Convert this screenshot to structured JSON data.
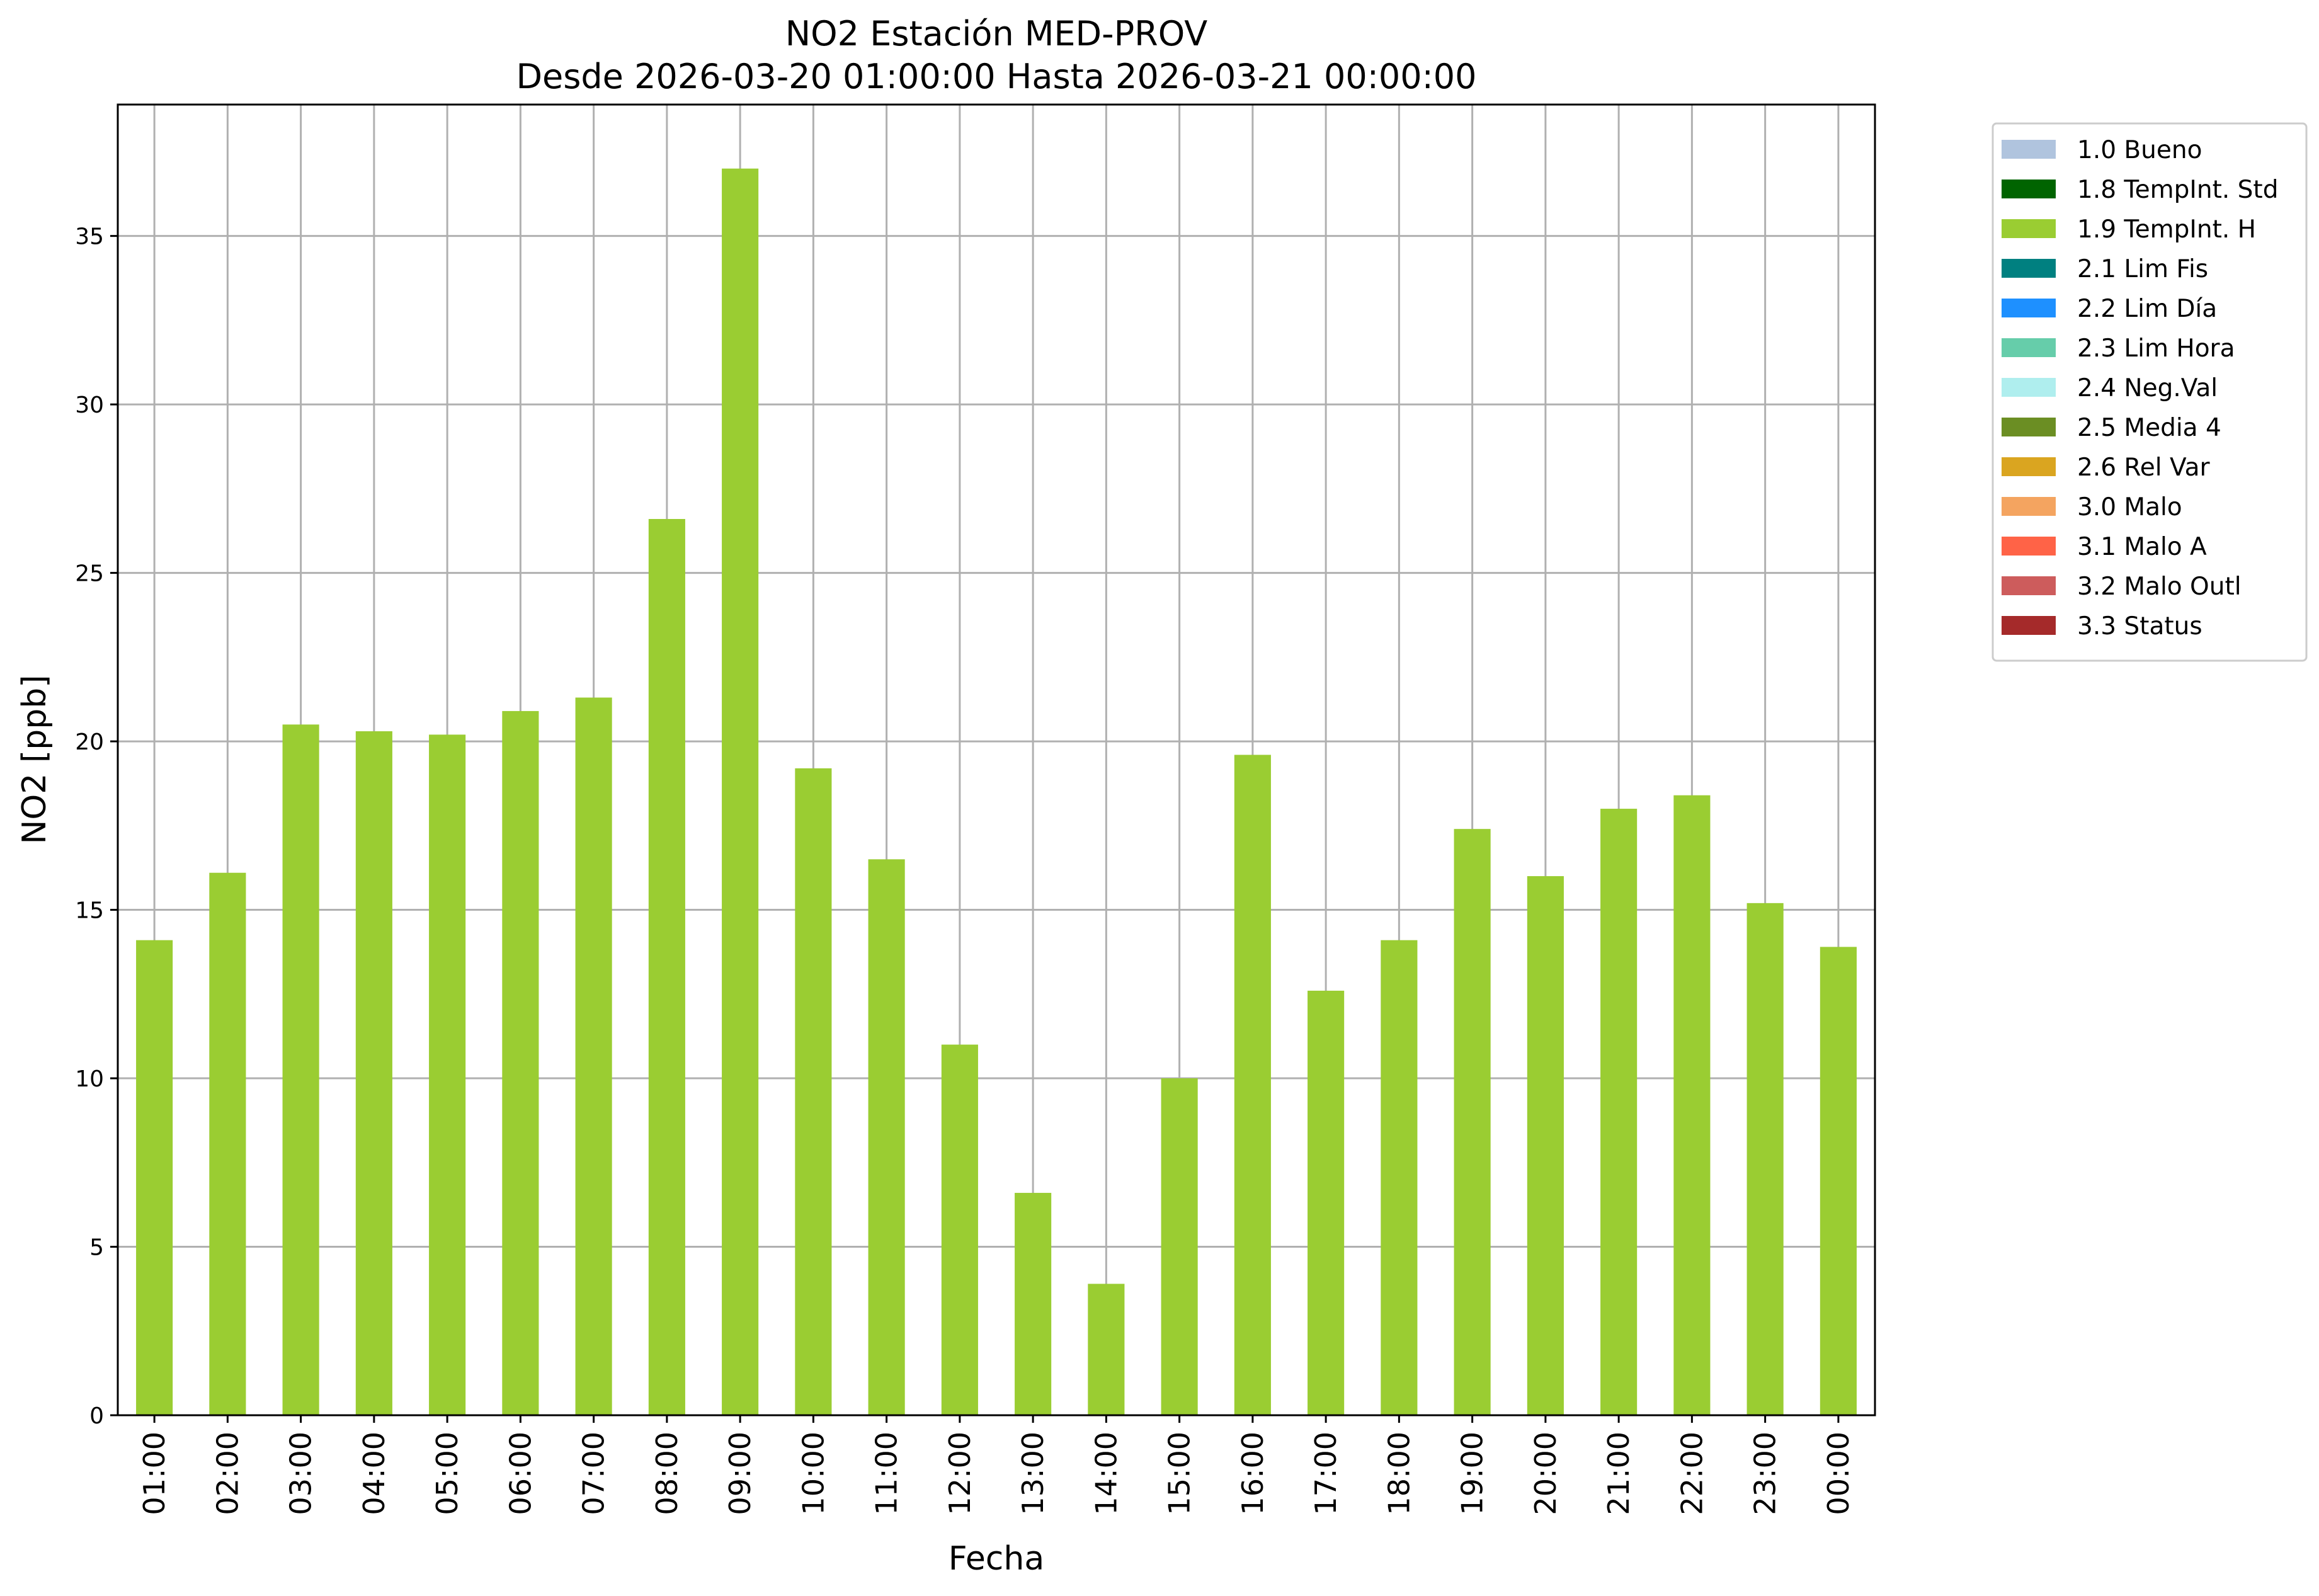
{
  "chart_data": {
    "type": "bar",
    "title": "NO2 Estación MED-PROV",
    "subtitle": "Desde 2026-03-20 01:00:00 Hasta 2026-03-21 00:00:00",
    "xlabel": "Fecha",
    "ylabel": "NO2 [ppb]",
    "categories": [
      "01:00",
      "02:00",
      "03:00",
      "04:00",
      "05:00",
      "06:00",
      "07:00",
      "08:00",
      "09:00",
      "10:00",
      "11:00",
      "12:00",
      "13:00",
      "14:00",
      "15:00",
      "16:00",
      "17:00",
      "18:00",
      "19:00",
      "20:00",
      "21:00",
      "22:00",
      "23:00",
      "00:00"
    ],
    "series": [
      {
        "name": "1.9 TempInt. H",
        "color": "#9acd32",
        "values": [
          14.1,
          16.1,
          20.5,
          20.3,
          20.2,
          20.9,
          21.3,
          26.6,
          37.0,
          19.2,
          16.5,
          11.0,
          6.6,
          3.9,
          10.0,
          19.6,
          12.6,
          14.1,
          17.4,
          16.0,
          18.0,
          18.4,
          15.2,
          13.9
        ]
      }
    ],
    "ylim": [
      0,
      38.9
    ],
    "yticks": [
      0,
      5,
      10,
      15,
      20,
      25,
      30,
      35
    ],
    "grid": true,
    "legend_position": "outside-top-right",
    "legend": [
      {
        "label": "1.0 Bueno",
        "color": "#b0c4de"
      },
      {
        "label": "1.8 TempInt. Std",
        "color": "#006400"
      },
      {
        "label": "1.9 TempInt. H",
        "color": "#9acd32"
      },
      {
        "label": "2.1 Lim Fis",
        "color": "#008080"
      },
      {
        "label": "2.2 Lim Día",
        "color": "#1e90ff"
      },
      {
        "label": "2.3 Lim Hora",
        "color": "#66cdaa"
      },
      {
        "label": "2.4 Neg.Val",
        "color": "#afeeee"
      },
      {
        "label": "2.5 Media 4",
        "color": "#6b8e23"
      },
      {
        "label": "2.6 Rel Var",
        "color": "#daa520"
      },
      {
        "label": "3.0 Malo",
        "color": "#f4a460"
      },
      {
        "label": "3.1 Malo A",
        "color": "#ff6347"
      },
      {
        "label": "3.2 Malo Outl",
        "color": "#cd5c5c"
      },
      {
        "label": "3.3 Status",
        "color": "#a52a2a"
      }
    ]
  }
}
